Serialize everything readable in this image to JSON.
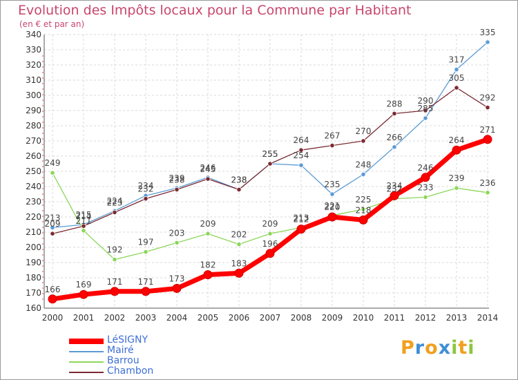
{
  "header": {
    "title": "Evolution des Impôts locaux pour la Commune par Habitant",
    "subtitle": "(en € et par an)"
  },
  "brand": {
    "letters": [
      "P",
      "r",
      "o",
      "x",
      "i",
      "t",
      "i"
    ],
    "colors": [
      "#f0a020",
      "#3d8fd6",
      "#f0a020",
      "#3d8fd6",
      "#8cc63f",
      "#f0a020",
      "#8cc63f"
    ]
  },
  "chart_data": {
    "type": "line",
    "x": [
      2000,
      2001,
      2002,
      2003,
      2004,
      2005,
      2006,
      2007,
      2008,
      2009,
      2010,
      2011,
      2012,
      2013,
      2014
    ],
    "ylim": [
      160,
      340
    ],
    "yticks": [
      160,
      170,
      180,
      190,
      200,
      210,
      220,
      230,
      240,
      250,
      260,
      270,
      280,
      290,
      300,
      310,
      320,
      330,
      340
    ],
    "grid": true,
    "legend_position": "bottom-left",
    "series": [
      {
        "name": "LéSIGNY",
        "color": "#ff0000",
        "values": [
          166,
          169,
          171,
          171,
          173,
          182,
          183,
          196,
          212,
          220,
          218,
          234,
          246,
          264,
          271
        ]
      },
      {
        "name": "Mairé",
        "color": "#5b9bd5",
        "values": [
          213,
          215,
          224,
          234,
          239,
          246,
          238,
          255,
          254,
          235,
          248,
          266,
          285,
          317,
          335
        ]
      },
      {
        "name": "Barrou",
        "color": "#8cd65a",
        "values": [
          249,
          211,
          192,
          197,
          203,
          209,
          202,
          209,
          213,
          221,
          225,
          232,
          233,
          239,
          236
        ]
      },
      {
        "name": "Chambon",
        "color": "#7b2a32",
        "values": [
          209,
          214,
          223,
          232,
          238,
          245,
          238,
          255,
          264,
          267,
          270,
          288,
          290,
          305,
          292
        ]
      }
    ],
    "data_labels": [
      [
        "166",
        "169",
        "171",
        "171",
        "173",
        "182",
        "183",
        "196",
        "212",
        "220",
        "218",
        "234",
        "246",
        "264",
        "271"
      ],
      [
        "213",
        "215",
        "224",
        "234",
        "239",
        "246",
        "238",
        "255",
        "254",
        "235",
        "248",
        "266",
        "285",
        "317",
        "335"
      ],
      [
        "249",
        "211",
        "192",
        "197",
        "203",
        "209",
        "202",
        "209",
        "213",
        "221",
        "225",
        "232",
        "233",
        "239",
        "236"
      ],
      [
        "209",
        "214",
        "223",
        "232",
        "238",
        "245",
        "238",
        "255",
        "264",
        "267",
        "270",
        "288",
        "290",
        "305",
        "292"
      ]
    ]
  }
}
